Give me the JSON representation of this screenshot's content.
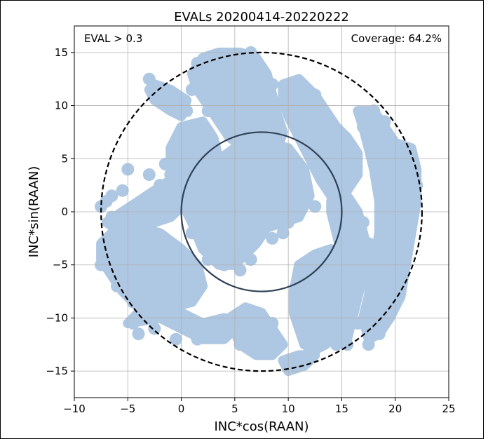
{
  "chart_data": {
    "type": "scatter",
    "title": "EVALs 20200414-20220222",
    "xlabel": "INC*cos(RAAN)",
    "ylabel": "INC*sin(RAAN)",
    "xlim": [
      -10,
      25
    ],
    "ylim": [
      -17.5,
      17.5
    ],
    "xticks": [
      -10,
      -5,
      0,
      5,
      10,
      15,
      20,
      25
    ],
    "yticks": [
      -15,
      -10,
      -5,
      0,
      5,
      10,
      15
    ],
    "xtick_labels": [
      "−10",
      "−5",
      "0",
      "5",
      "10",
      "15",
      "20",
      "25"
    ],
    "ytick_labels": [
      "−15",
      "−10",
      "−5",
      "0",
      "5",
      "10",
      "15"
    ],
    "grid": true,
    "annotations": {
      "left": "EVAL > 0.3",
      "right": "Coverage: 64.2%"
    },
    "coverage_color": "#aec7e2",
    "inner_circle": {
      "center": [
        7.5,
        0
      ],
      "radius": 7.5,
      "style": "solid",
      "color": "#2f4156"
    },
    "outer_circle": {
      "center": [
        7.5,
        0
      ],
      "radius": 15,
      "style": "dashed",
      "color": "#000000"
    },
    "coverage_regions": [
      {
        "name": "top-center",
        "points": [
          [
            3.5,
            15
          ],
          [
            5.5,
            15
          ],
          [
            7,
            14.5
          ],
          [
            8,
            13
          ],
          [
            8.5,
            11
          ],
          [
            9,
            9
          ],
          [
            9.5,
            7.5
          ],
          [
            9,
            6
          ],
          [
            7.5,
            5.5
          ],
          [
            6,
            6
          ],
          [
            4.5,
            7
          ],
          [
            3.5,
            8.5
          ],
          [
            2.5,
            10
          ],
          [
            1.5,
            11.5
          ],
          [
            1,
            13
          ],
          [
            2,
            14.5
          ]
        ]
      },
      {
        "name": "upper-left-arm",
        "points": [
          [
            -2.5,
            12
          ],
          [
            -1,
            11.5
          ],
          [
            0.5,
            10.5
          ],
          [
            0,
            9
          ],
          [
            -1,
            9.5
          ],
          [
            -2.5,
            10.5
          ],
          [
            -3,
            11.5
          ]
        ]
      },
      {
        "name": "upper-left-cluster",
        "points": [
          [
            0,
            8
          ],
          [
            2,
            8.5
          ],
          [
            3,
            7
          ],
          [
            3.5,
            5
          ],
          [
            2.5,
            3.5
          ],
          [
            0.5,
            3
          ],
          [
            -1,
            4
          ],
          [
            -1,
            6
          ]
        ]
      },
      {
        "name": "center-body",
        "points": [
          [
            0.5,
            3
          ],
          [
            3,
            4.5
          ],
          [
            5,
            6
          ],
          [
            7.5,
            6.5
          ],
          [
            10,
            6
          ],
          [
            11.5,
            4
          ],
          [
            12,
            1.5
          ],
          [
            11,
            -0.5
          ],
          [
            9.5,
            -1
          ],
          [
            8,
            -1.5
          ],
          [
            7,
            -3
          ],
          [
            6,
            -4
          ],
          [
            5,
            -5
          ],
          [
            3.5,
            -5
          ],
          [
            2,
            -3.5
          ],
          [
            1,
            -1
          ],
          [
            0,
            1
          ]
        ]
      },
      {
        "name": "left-band",
        "points": [
          [
            -7,
            -1
          ],
          [
            -5.5,
            0
          ],
          [
            -4,
            1
          ],
          [
            -2.5,
            2
          ],
          [
            -1,
            3
          ],
          [
            0.5,
            3
          ],
          [
            0.5,
            1
          ],
          [
            -1,
            -0.5
          ],
          [
            -2.5,
            -1
          ],
          [
            -4,
            -1.5
          ],
          [
            -5.5,
            -2
          ]
        ]
      },
      {
        "name": "lower-left-mass",
        "points": [
          [
            -7.5,
            -3
          ],
          [
            -6,
            -1.5
          ],
          [
            -4,
            -1.5
          ],
          [
            -2,
            -2
          ],
          [
            0,
            -3.5
          ],
          [
            1.5,
            -5
          ],
          [
            2,
            -7
          ],
          [
            1,
            -8.5
          ],
          [
            -1,
            -9
          ],
          [
            -2.5,
            -9.5
          ],
          [
            -4,
            -9
          ],
          [
            -5.5,
            -7.5
          ],
          [
            -6.5,
            -6
          ],
          [
            -7.5,
            -4.5
          ]
        ]
      },
      {
        "name": "bottom-left-tail",
        "points": [
          [
            -5,
            -10.5
          ],
          [
            -2,
            -10
          ],
          [
            0,
            -11
          ],
          [
            2,
            -12
          ],
          [
            4,
            -12
          ],
          [
            5,
            -11
          ],
          [
            4,
            -10
          ],
          [
            2,
            -10.5
          ],
          [
            0,
            -9.5
          ],
          [
            -2,
            -9
          ],
          [
            -4,
            -9.5
          ]
        ]
      },
      {
        "name": "bottom-center",
        "points": [
          [
            4.5,
            -10
          ],
          [
            6,
            -9
          ],
          [
            7.5,
            -9.5
          ],
          [
            8.5,
            -11
          ],
          [
            9.5,
            -12.5
          ],
          [
            8.5,
            -13.5
          ],
          [
            7,
            -13.5
          ],
          [
            5.5,
            -12.5
          ]
        ]
      },
      {
        "name": "bottom-right",
        "points": [
          [
            11,
            -5
          ],
          [
            12.5,
            -4
          ],
          [
            14,
            -3.5
          ],
          [
            15,
            -5
          ],
          [
            15.5,
            -7
          ],
          [
            15,
            -9
          ],
          [
            14.5,
            -11
          ],
          [
            13.5,
            -12.5
          ],
          [
            12.5,
            -13
          ],
          [
            11.5,
            -12.5
          ],
          [
            11,
            -11
          ],
          [
            10.5,
            -9.5
          ],
          [
            10.5,
            -7.5
          ]
        ]
      },
      {
        "name": "right-upper-mass",
        "points": [
          [
            9.5,
            12
          ],
          [
            11,
            12.5
          ],
          [
            12.5,
            11
          ],
          [
            13.5,
            9.5
          ],
          [
            14.5,
            8
          ],
          [
            15.5,
            7
          ],
          [
            16.5,
            5.5
          ],
          [
            16.5,
            3.5
          ],
          [
            15.5,
            2
          ],
          [
            14,
            1.5
          ],
          [
            13,
            3
          ],
          [
            12,
            5
          ],
          [
            11,
            7
          ],
          [
            10,
            9
          ],
          [
            9.5,
            10.5
          ]
        ]
      },
      {
        "name": "right-center-band",
        "points": [
          [
            14,
            1
          ],
          [
            15.5,
            1.5
          ],
          [
            16.5,
            0
          ],
          [
            17,
            -2
          ],
          [
            17.5,
            -4
          ],
          [
            17,
            -6
          ],
          [
            16.5,
            -8
          ],
          [
            16,
            -10
          ],
          [
            15.5,
            -12
          ],
          [
            14.5,
            -12
          ],
          [
            14.5,
            -10
          ],
          [
            15,
            -8
          ],
          [
            15.5,
            -6
          ],
          [
            15,
            -4
          ],
          [
            14.5,
            -2
          ],
          [
            14,
            0
          ]
        ]
      },
      {
        "name": "far-right-arc",
        "points": [
          [
            16.5,
            9.5
          ],
          [
            18,
            9.5
          ],
          [
            19,
            8
          ],
          [
            20,
            6.5
          ],
          [
            21.5,
            6
          ],
          [
            22,
            4
          ],
          [
            22,
            1
          ],
          [
            21.5,
            -2
          ],
          [
            21,
            -5
          ],
          [
            20.5,
            -8
          ],
          [
            19.5,
            -10
          ],
          [
            18.5,
            -11.5
          ],
          [
            17.5,
            -12
          ],
          [
            17,
            -10
          ],
          [
            17.5,
            -8
          ],
          [
            18,
            -5
          ],
          [
            18.5,
            -2
          ],
          [
            18.5,
            1
          ],
          [
            18,
            4
          ],
          [
            17.5,
            6
          ],
          [
            17,
            8
          ]
        ]
      },
      {
        "name": "bottom-right-tail",
        "points": [
          [
            9.5,
            -14
          ],
          [
            11,
            -13.5
          ],
          [
            12.5,
            -13.5
          ],
          [
            11.5,
            -14.5
          ],
          [
            10,
            -15
          ]
        ]
      }
    ],
    "coverage_blobs": [
      [
        1.5,
        14
      ],
      [
        2.5,
        12
      ],
      [
        4,
        10.5
      ],
      [
        1,
        11.5
      ],
      [
        2.5,
        9.5
      ],
      [
        -1.5,
        11.5
      ],
      [
        -3,
        12.5
      ],
      [
        0.5,
        9.5
      ],
      [
        6.5,
        15
      ],
      [
        7.5,
        13.5
      ],
      [
        8.5,
        12
      ],
      [
        9,
        10
      ],
      [
        10,
        11.5
      ],
      [
        11,
        10.5
      ],
      [
        12.5,
        11
      ],
      [
        -1.5,
        4.5
      ],
      [
        -3,
        3.5
      ],
      [
        -5,
        4
      ],
      [
        -5.5,
        2
      ],
      [
        -6.5,
        1.5
      ],
      [
        -7,
        1
      ],
      [
        -7.5,
        0.5
      ],
      [
        -6.5,
        -0.5
      ],
      [
        -4.5,
        0.5
      ],
      [
        -3,
        1.5
      ],
      [
        -2,
        2.5
      ],
      [
        -1,
        3.5
      ],
      [
        -5,
        -3.5
      ],
      [
        -6.5,
        -2.5
      ],
      [
        -7,
        -3.5
      ],
      [
        -7.5,
        -5
      ],
      [
        -6,
        -7
      ],
      [
        -4.5,
        -8.5
      ],
      [
        -3.5,
        -9.5
      ],
      [
        -2,
        -9
      ],
      [
        -1,
        -10
      ],
      [
        -2.5,
        -11
      ],
      [
        -4.5,
        -10.5
      ],
      [
        -4,
        -11.5
      ],
      [
        -0.5,
        -12
      ],
      [
        1.5,
        -12
      ],
      [
        3.5,
        -11.5
      ],
      [
        5.5,
        -12.5
      ],
      [
        6.5,
        -13
      ],
      [
        7.5,
        -11.5
      ],
      [
        8.5,
        -10.5
      ],
      [
        9,
        -12
      ],
      [
        10,
        -14.5
      ],
      [
        11.5,
        -14
      ],
      [
        12,
        -13.5
      ],
      [
        12,
        -6
      ],
      [
        13,
        -5
      ],
      [
        14.5,
        -4
      ],
      [
        13.5,
        -8
      ],
      [
        12.5,
        -10
      ],
      [
        13.5,
        -11
      ],
      [
        14.5,
        -10.5
      ],
      [
        15.5,
        -8.5
      ],
      [
        16.5,
        -10.5
      ],
      [
        16,
        -6
      ],
      [
        16.5,
        -3.5
      ],
      [
        17.5,
        -3
      ],
      [
        17,
        -1
      ],
      [
        16,
        0.5
      ],
      [
        19,
        8.5
      ],
      [
        18,
        9.5
      ],
      [
        17,
        8
      ],
      [
        20.5,
        6
      ],
      [
        21.5,
        5.5
      ],
      [
        22,
        2.5
      ],
      [
        21.5,
        0
      ],
      [
        21,
        -3
      ],
      [
        20.5,
        -6
      ],
      [
        20,
        -8.5
      ],
      [
        19,
        -10
      ],
      [
        18.5,
        -11.5
      ],
      [
        17.5,
        -12.5
      ],
      [
        15.5,
        -12.5
      ],
      [
        14.5,
        -12.5
      ],
      [
        10,
        4
      ],
      [
        11.5,
        2.5
      ],
      [
        12.5,
        0.5
      ],
      [
        9.5,
        -2
      ],
      [
        10,
        -1
      ],
      [
        8.5,
        -2.5
      ],
      [
        6.5,
        -4.5
      ],
      [
        5.5,
        -5.5
      ],
      [
        4,
        -5
      ],
      [
        2.5,
        -4.5
      ],
      [
        1,
        -2
      ],
      [
        3.5,
        3
      ],
      [
        5,
        4.5
      ],
      [
        6.5,
        5.5
      ],
      [
        8.5,
        5.5
      ],
      [
        2,
        6.5
      ],
      [
        0,
        7
      ]
    ]
  }
}
